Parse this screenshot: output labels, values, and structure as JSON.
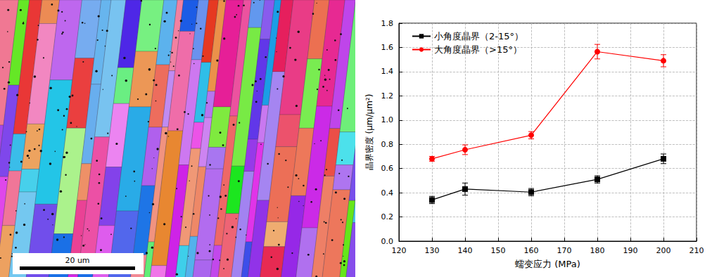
{
  "chart_data": {
    "type": "line",
    "xlabel": "蠕变应力 (MPa)",
    "ylabel": "晶界密度 (μm/μm²)",
    "x": [
      130,
      140,
      160,
      180,
      200
    ],
    "xlim": [
      120,
      210
    ],
    "xticks": [
      120,
      130,
      140,
      150,
      160,
      170,
      180,
      190,
      200,
      210
    ],
    "ylim": [
      0,
      1.8
    ],
    "yticks": [
      {
        "value": 0,
        "label": "0.0"
      },
      0.2,
      0.4,
      0.6,
      0.8,
      {
        "value": 1,
        "label": "1.0"
      },
      1.2,
      1.4,
      1.6,
      1.8
    ],
    "grid": true,
    "legend": "upper left",
    "series": [
      {
        "name": "小角度晶界（2-15°）",
        "color": "#000000",
        "marker": "square",
        "line_style": "solid",
        "values": [
          0.34,
          0.43,
          0.405,
          0.51,
          0.68
        ],
        "errors": [
          0.03,
          0.05,
          0.03,
          0.03,
          0.04
        ]
      },
      {
        "name": "大角度晶界（>15°）",
        "color": "#ff0000",
        "marker": "circle",
        "line_style": "solid",
        "values": [
          0.68,
          0.755,
          0.875,
          1.565,
          1.49
        ],
        "errors": [
          0.02,
          0.04,
          0.03,
          0.06,
          0.05
        ]
      }
    ]
  },
  "micrograph": {
    "scale_bar": "20 um"
  }
}
